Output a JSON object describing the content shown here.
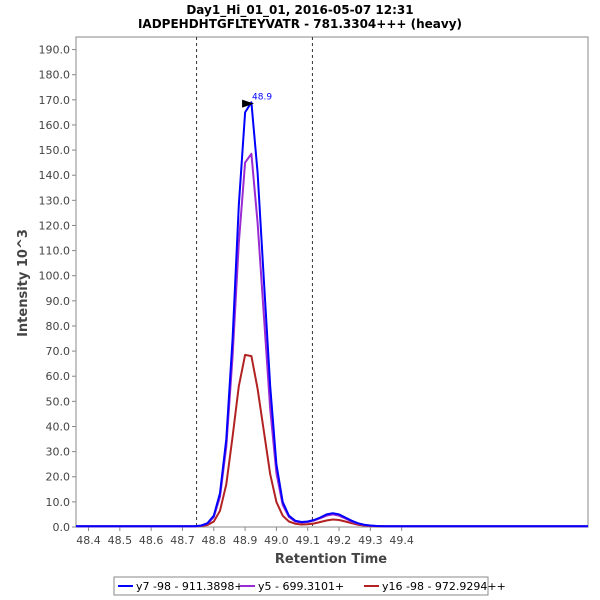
{
  "chart_data": {
    "type": "line",
    "title": "Day1_Hi_01_01, 2016-05-07 12:31",
    "subtitle": "IADPEHDHTGFLTEYVATR - 781.3304+++ (heavy)",
    "xlabel": "Retention Time",
    "ylabel": "Intensity 10^3",
    "xlim": [
      48.36,
      49.995
    ],
    "ylim": [
      0,
      195
    ],
    "grid": false,
    "legend_position": "bottom",
    "x_ticks": [
      48.4,
      48.5,
      48.6,
      48.7,
      48.8,
      48.9,
      49.0,
      49.1,
      49.2,
      49.3,
      49.4
    ],
    "x_tick_labels": [
      "48.4",
      "48.5",
      "48.6",
      "48.7",
      "48.8",
      "48.9",
      "49.0",
      "49.1",
      "49.2",
      "49.3",
      "49.4"
    ],
    "y_ticks": [
      0,
      10,
      20,
      30,
      40,
      50,
      60,
      70,
      80,
      90,
      100,
      110,
      120,
      130,
      140,
      150,
      160,
      170,
      180,
      190
    ],
    "y_tick_labels": [
      "0.0",
      "10.0",
      "20.0",
      "30.0",
      "40.0",
      "50.0",
      "60.0",
      "70.0",
      "80.0",
      "90.0",
      "100.0",
      "110.0",
      "120.0",
      "130.0",
      "140.0",
      "150.0",
      "160.0",
      "170.0",
      "180.0",
      "190.0"
    ],
    "boundaries": [
      48.745,
      49.115
    ],
    "peak_annotation": {
      "x": 48.935,
      "y": 168.5,
      "label": "48.9"
    },
    "x": [
      48.36,
      48.4,
      48.5,
      48.6,
      48.7,
      48.74,
      48.76,
      48.78,
      48.8,
      48.82,
      48.84,
      48.86,
      48.88,
      48.9,
      48.92,
      48.94,
      48.96,
      48.98,
      49.0,
      49.02,
      49.04,
      49.06,
      49.08,
      49.1,
      49.12,
      49.14,
      49.16,
      49.18,
      49.2,
      49.22,
      49.24,
      49.26,
      49.28,
      49.3,
      49.32,
      49.34,
      49.36,
      49.38,
      49.4,
      49.45,
      49.5,
      49.995
    ],
    "series": [
      {
        "name": "y7 -98 - 911.3898+",
        "color": "#0000ff",
        "values": [
          0.3,
          0.3,
          0.3,
          0.3,
          0.3,
          0.3,
          0.6,
          1.5,
          4.5,
          13.5,
          35.0,
          75.0,
          128.0,
          165.0,
          169.0,
          141.0,
          98.0,
          56.0,
          25.0,
          10.0,
          4.5,
          2.5,
          2.0,
          2.2,
          2.8,
          3.8,
          5.0,
          5.5,
          5.0,
          3.8,
          2.5,
          1.5,
          0.9,
          0.6,
          0.4,
          0.3,
          0.3,
          0.3,
          0.3,
          0.3,
          0.3,
          0.3
        ]
      },
      {
        "name": "y5 - 699.3101+",
        "color": "#9a2bd2",
        "values": [
          0.3,
          0.3,
          0.3,
          0.3,
          0.3,
          0.3,
          0.5,
          1.3,
          4.0,
          12.0,
          32.0,
          68.0,
          113.0,
          145.0,
          148.5,
          121.0,
          84.0,
          47.0,
          21.5,
          8.8,
          4.0,
          2.2,
          1.8,
          2.0,
          2.6,
          3.5,
          4.5,
          5.0,
          4.5,
          3.4,
          2.2,
          1.3,
          0.8,
          0.5,
          0.4,
          0.3,
          0.3,
          0.3,
          0.3,
          0.3,
          0.3,
          0.3
        ]
      },
      {
        "name": "y16 -98 - 972.9294++",
        "color": "#b22222",
        "values": [
          0.3,
          0.3,
          0.3,
          0.3,
          0.3,
          0.3,
          0.4,
          0.8,
          2.2,
          6.5,
          17.0,
          36.0,
          56.0,
          68.5,
          68.0,
          55.0,
          38.0,
          21.0,
          10.0,
          4.5,
          2.2,
          1.3,
          1.0,
          1.1,
          1.4,
          2.0,
          2.6,
          3.0,
          2.8,
          2.2,
          1.5,
          0.9,
          0.6,
          0.4,
          0.3,
          0.3,
          0.3,
          0.3,
          0.3,
          0.3,
          0.3,
          0.3
        ]
      }
    ]
  }
}
